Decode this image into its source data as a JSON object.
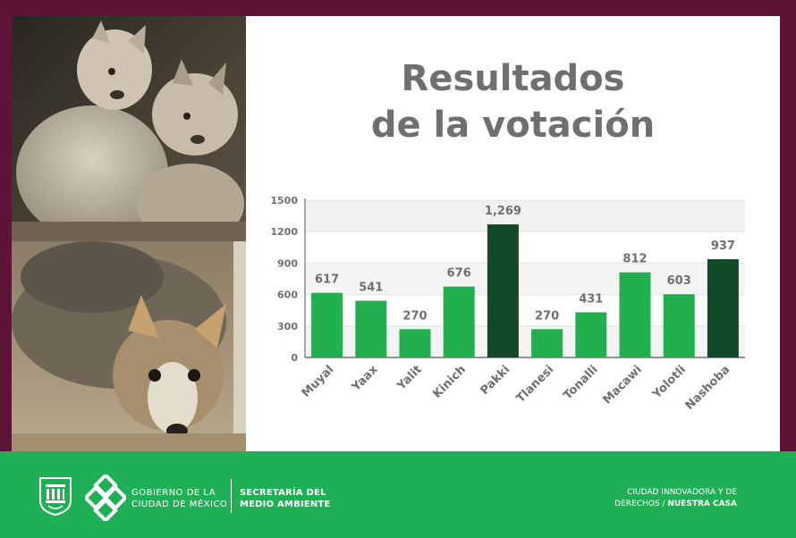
{
  "title": {
    "line1": "Resultados",
    "line2": "de la votación"
  },
  "chart_data": {
    "type": "bar",
    "title": "Resultados de la votación",
    "categories": [
      "Muyal",
      "Yaax",
      "Yalit",
      "Kinich",
      "Pakki",
      "Tlanesi",
      "Tonalli",
      "Macawi",
      "Yolotli",
      "Nashoba"
    ],
    "values": [
      617,
      541,
      270,
      676,
      1269,
      270,
      431,
      812,
      603,
      937
    ],
    "value_labels": [
      "617",
      "541",
      "270",
      "676",
      "1,269",
      "270",
      "431",
      "812",
      "603",
      "937"
    ],
    "highlighted": [
      "Pakki",
      "Nashoba"
    ],
    "ylim": [
      0,
      1500
    ],
    "yticks": [
      "0",
      "300",
      "600",
      "900",
      "1200",
      "1500"
    ],
    "grid": "horizontal bands",
    "colors": {
      "bar": "#22b04f",
      "bar_highlight": "#124a28",
      "value_label": "#6f6f6f",
      "axis_label": "#6f6f6f"
    }
  },
  "footer": {
    "gov_line1": "GOBIERNO DE LA",
    "gov_line2": "CIUDAD DE MÉXICO",
    "sec_line1": "SECRETARÍA DEL",
    "sec_line2": "MEDIO AMBIENTE",
    "slogan_line1": "CIUDAD INNOVADORA Y DE",
    "slogan_line2_a": "DERECHOS / ",
    "slogan_line2_b": "NUESTRA CASA"
  },
  "colors": {
    "frame": "#5e1437",
    "footer": "#1faf55",
    "title": "#6f6f6f"
  },
  "images": {
    "top_photo": "wolf-pups-sitting-image",
    "bottom_photo": "wolf-pup-sniffing-ground-image",
    "shield": "cdmx-shield-logo",
    "knot": "cdmx-knot-logo"
  }
}
